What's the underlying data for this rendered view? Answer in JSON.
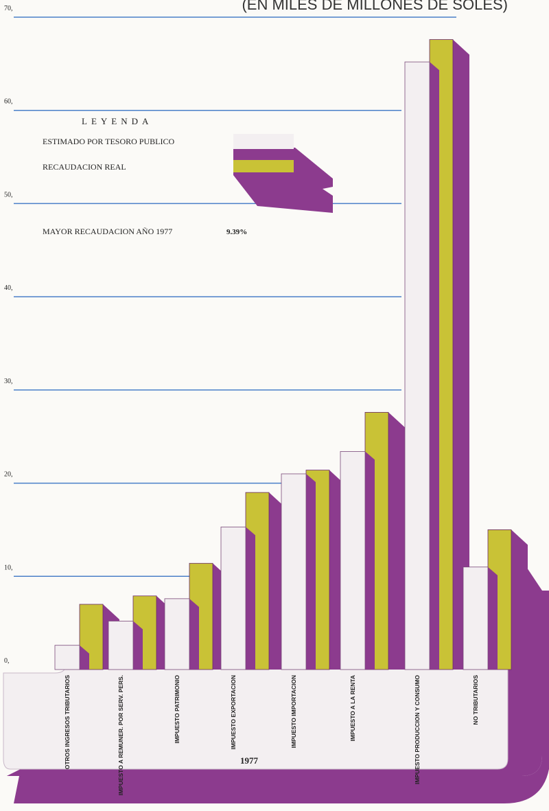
{
  "chart_data": {
    "type": "bar",
    "title": "(EN MILES DE MILLONES DE SOLES)",
    "categories": [
      "OTROS INGRESOS TRIBUTARIOS",
      "IMPUESTO A REMUNER. POR SERV. PERS.",
      "IMPUESTO PATRIMONIO",
      "IMPUESTO EXPORTACION",
      "IMPUESTO IMPORTACION",
      "IMPUESTO A LA RENTA",
      "IMPUESTO PRODUCCION Y CONSUMO",
      "NO TRIBUTARIOS"
    ],
    "series": [
      {
        "name": "ESTIMADO POR TESORO PUBLICO",
        "color": "#f3eff1",
        "values": [
          2.6,
          5.2,
          7.6,
          15.3,
          21.0,
          23.4,
          65.2,
          11.0
        ]
      },
      {
        "name": "RECAUDACION REAL",
        "color": "#c9c236",
        "values": [
          7.0,
          7.9,
          11.4,
          19.0,
          21.4,
          27.6,
          67.6,
          15.0
        ]
      }
    ],
    "ylim": [
      0,
      70
    ],
    "yticks": [
      {
        "value": 0,
        "label": "0,"
      },
      {
        "value": 10,
        "label": "10,"
      },
      {
        "value": 20,
        "label": "20,"
      },
      {
        "value": 30,
        "label": "30,"
      },
      {
        "value": 40,
        "label": "40,"
      },
      {
        "value": 50,
        "label": "50,"
      },
      {
        "value": 60,
        "label": "60,"
      },
      {
        "value": 70,
        "label": "70,"
      }
    ],
    "grid": true,
    "legend_title": "LEYENDA",
    "annotation": "MAYOR RECAUDACION AÑO 1977",
    "annotation_value": "9.39%",
    "xlabel": "1977"
  }
}
